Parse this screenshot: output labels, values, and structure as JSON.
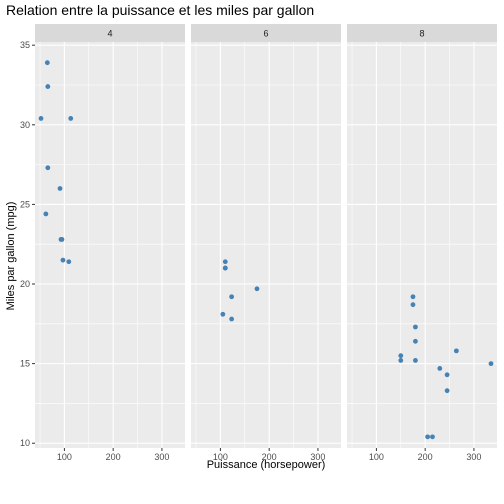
{
  "chart_data": {
    "type": "scatter",
    "title": "Relation entre la puissance et les miles par gallon",
    "xlabel": "Puissance (horsepower)",
    "ylabel": "Miles par gallon (mpg)",
    "xlim": [
      52,
      335
    ],
    "ylim": [
      9.7,
      35.2
    ],
    "xticks": [
      100,
      200,
      300
    ],
    "yticks": [
      10,
      15,
      20,
      25,
      30,
      35
    ],
    "point_color": "#4682B4",
    "panel_background": "#EBEBEB",
    "strip_background": "#D9D9D9",
    "grid_color": "#FFFFFF",
    "facets": [
      {
        "label": "4",
        "points": [
          {
            "x": 93,
            "y": 22.8
          },
          {
            "x": 62,
            "y": 24.4
          },
          {
            "x": 95,
            "y": 22.8
          },
          {
            "x": 66,
            "y": 32.4
          },
          {
            "x": 52,
            "y": 30.4
          },
          {
            "x": 65,
            "y": 33.9
          },
          {
            "x": 97,
            "y": 21.5
          },
          {
            "x": 66,
            "y": 27.3
          },
          {
            "x": 91,
            "y": 26.0
          },
          {
            "x": 113,
            "y": 30.4
          },
          {
            "x": 109,
            "y": 21.4
          }
        ]
      },
      {
        "label": "6",
        "points": [
          {
            "x": 110,
            "y": 21.0
          },
          {
            "x": 110,
            "y": 21.4
          },
          {
            "x": 110,
            "y": 21.0
          },
          {
            "x": 105,
            "y": 18.1
          },
          {
            "x": 123,
            "y": 19.2
          },
          {
            "x": 123,
            "y": 17.8
          },
          {
            "x": 175,
            "y": 19.7
          }
        ]
      },
      {
        "label": "8",
        "points": [
          {
            "x": 175,
            "y": 18.7
          },
          {
            "x": 245,
            "y": 14.3
          },
          {
            "x": 180,
            "y": 16.4
          },
          {
            "x": 180,
            "y": 17.3
          },
          {
            "x": 180,
            "y": 15.2
          },
          {
            "x": 205,
            "y": 10.4
          },
          {
            "x": 215,
            "y": 10.4
          },
          {
            "x": 230,
            "y": 14.7
          },
          {
            "x": 150,
            "y": 15.5
          },
          {
            "x": 150,
            "y": 15.2
          },
          {
            "x": 245,
            "y": 13.3
          },
          {
            "x": 175,
            "y": 19.2
          },
          {
            "x": 264,
            "y": 15.8
          },
          {
            "x": 335,
            "y": 15.0
          }
        ]
      }
    ]
  }
}
